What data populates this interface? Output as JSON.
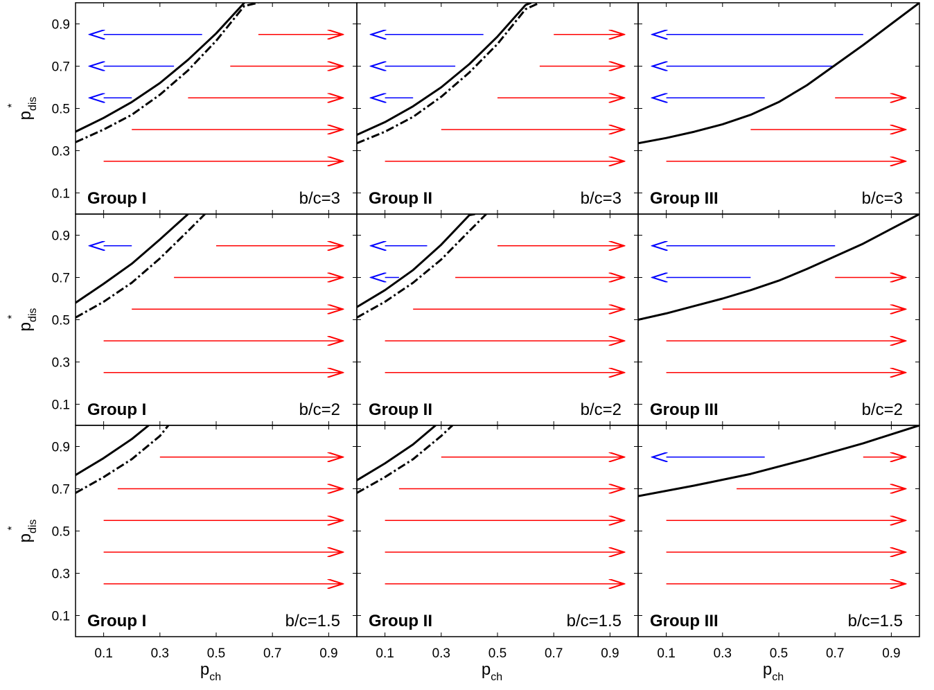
{
  "chart_data": {
    "type": "line",
    "layout": "3x3 grid of panels",
    "xlim": [
      0,
      1
    ],
    "ylim": [
      0,
      1
    ],
    "xticks": [
      0.1,
      0.3,
      0.5,
      0.7,
      0.9
    ],
    "yticks": [
      0.1,
      0.3,
      0.5,
      0.7,
      0.9
    ],
    "xtick_labels": [
      "0.1",
      "0.3",
      "0.5",
      "0.7",
      "0.9"
    ],
    "ytick_labels": [
      "0.1",
      "0.3",
      "0.5",
      "0.7",
      "0.9"
    ],
    "xlabel": {
      "main": "p",
      "sub": "ch"
    },
    "ylabel": {
      "main": "p",
      "sub": "dis",
      "sup": "*"
    },
    "grid": false,
    "colors": {
      "red_arrow": "#ff0000",
      "blue_arrow": "#0000ff",
      "curve": "#000000"
    },
    "arrow_rows": [
      0.25,
      0.4,
      0.55,
      0.7,
      0.85
    ],
    "panels": [
      {
        "group": "Group I",
        "bc": "b/c=3",
        "solid": [
          [
            0,
            0.39
          ],
          [
            0.1,
            0.455
          ],
          [
            0.2,
            0.53
          ],
          [
            0.3,
            0.62
          ],
          [
            0.4,
            0.73
          ],
          [
            0.5,
            0.855
          ],
          [
            0.6,
            1.0
          ]
        ],
        "dashdot": [
          [
            0,
            0.34
          ],
          [
            0.1,
            0.4
          ],
          [
            0.2,
            0.47
          ],
          [
            0.3,
            0.565
          ],
          [
            0.4,
            0.68
          ],
          [
            0.5,
            0.82
          ],
          [
            0.6,
            0.985
          ],
          [
            0.65,
            1.0
          ]
        ],
        "red_arrows": [
          [
            0.1,
            0.95,
            0.25
          ],
          [
            0.2,
            0.95,
            0.4
          ],
          [
            0.4,
            0.95,
            0.55
          ],
          [
            0.55,
            0.95,
            0.7
          ],
          [
            0.65,
            0.95,
            0.85
          ]
        ],
        "blue_arrows": [
          [
            0.2,
            0.1,
            0.55
          ],
          [
            0.35,
            0.1,
            0.7
          ],
          [
            0.45,
            0.1,
            0.85
          ]
        ]
      },
      {
        "group": "Group II",
        "bc": "b/c=3",
        "solid": [
          [
            0,
            0.375
          ],
          [
            0.1,
            0.435
          ],
          [
            0.2,
            0.51
          ],
          [
            0.3,
            0.6
          ],
          [
            0.4,
            0.71
          ],
          [
            0.5,
            0.84
          ],
          [
            0.6,
            0.99
          ],
          [
            0.62,
            1.0
          ]
        ],
        "dashdot": [
          [
            0,
            0.335
          ],
          [
            0.1,
            0.39
          ],
          [
            0.2,
            0.46
          ],
          [
            0.3,
            0.555
          ],
          [
            0.4,
            0.67
          ],
          [
            0.5,
            0.805
          ],
          [
            0.6,
            0.97
          ],
          [
            0.65,
            1.0
          ]
        ],
        "red_arrows": [
          [
            0.1,
            0.95,
            0.25
          ],
          [
            0.3,
            0.95,
            0.4
          ],
          [
            0.5,
            0.95,
            0.55
          ],
          [
            0.65,
            0.95,
            0.7
          ],
          [
            0.7,
            0.95,
            0.85
          ]
        ],
        "blue_arrows": [
          [
            0.2,
            0.1,
            0.55
          ],
          [
            0.35,
            0.1,
            0.7
          ],
          [
            0.45,
            0.1,
            0.85
          ]
        ]
      },
      {
        "group": "Group III",
        "bc": "b/c=3",
        "solid": [
          [
            0,
            0.335
          ],
          [
            0.1,
            0.36
          ],
          [
            0.2,
            0.39
          ],
          [
            0.3,
            0.425
          ],
          [
            0.4,
            0.47
          ],
          [
            0.5,
            0.53
          ],
          [
            0.6,
            0.61
          ],
          [
            0.7,
            0.705
          ],
          [
            0.8,
            0.8
          ],
          [
            0.9,
            0.9
          ],
          [
            1.0,
            1.0
          ]
        ],
        "dashdot": [],
        "red_arrows": [
          [
            0.1,
            0.95,
            0.25
          ],
          [
            0.4,
            0.95,
            0.4
          ],
          [
            0.7,
            0.95,
            0.55
          ]
        ],
        "blue_arrows": [
          [
            0.45,
            0.1,
            0.55
          ],
          [
            0.7,
            0.1,
            0.7
          ],
          [
            0.8,
            0.1,
            0.85
          ]
        ]
      },
      {
        "group": "Group I",
        "bc": "b/c=2",
        "solid": [
          [
            0,
            0.58
          ],
          [
            0.1,
            0.67
          ],
          [
            0.2,
            0.765
          ],
          [
            0.3,
            0.88
          ],
          [
            0.4,
            1.0
          ]
        ],
        "dashdot": [
          [
            0,
            0.51
          ],
          [
            0.1,
            0.585
          ],
          [
            0.2,
            0.675
          ],
          [
            0.3,
            0.79
          ],
          [
            0.4,
            0.92
          ],
          [
            0.46,
            1.0
          ]
        ],
        "red_arrows": [
          [
            0.1,
            0.95,
            0.25
          ],
          [
            0.1,
            0.95,
            0.4
          ],
          [
            0.2,
            0.95,
            0.55
          ],
          [
            0.35,
            0.95,
            0.7
          ],
          [
            0.5,
            0.95,
            0.85
          ]
        ],
        "blue_arrows": [
          [
            0.2,
            0.1,
            0.85
          ]
        ]
      },
      {
        "group": "Group II",
        "bc": "b/c=2",
        "solid": [
          [
            0,
            0.56
          ],
          [
            0.1,
            0.64
          ],
          [
            0.2,
            0.735
          ],
          [
            0.3,
            0.855
          ],
          [
            0.4,
            0.995
          ],
          [
            0.42,
            1.0
          ]
        ],
        "dashdot": [
          [
            0,
            0.51
          ],
          [
            0.1,
            0.585
          ],
          [
            0.2,
            0.675
          ],
          [
            0.3,
            0.785
          ],
          [
            0.4,
            0.92
          ],
          [
            0.46,
            1.0
          ]
        ],
        "red_arrows": [
          [
            0.1,
            0.95,
            0.25
          ],
          [
            0.1,
            0.95,
            0.4
          ],
          [
            0.2,
            0.95,
            0.55
          ],
          [
            0.35,
            0.95,
            0.7
          ],
          [
            0.5,
            0.95,
            0.85
          ]
        ],
        "blue_arrows": [
          [
            0.15,
            0.1,
            0.7
          ],
          [
            0.25,
            0.1,
            0.85
          ]
        ]
      },
      {
        "group": "Group III",
        "bc": "b/c=2",
        "solid": [
          [
            0,
            0.5
          ],
          [
            0.1,
            0.53
          ],
          [
            0.2,
            0.565
          ],
          [
            0.3,
            0.6
          ],
          [
            0.4,
            0.64
          ],
          [
            0.5,
            0.685
          ],
          [
            0.6,
            0.74
          ],
          [
            0.7,
            0.8
          ],
          [
            0.8,
            0.86
          ],
          [
            0.9,
            0.93
          ],
          [
            1.0,
            1.0
          ]
        ],
        "dashdot": [],
        "red_arrows": [
          [
            0.1,
            0.95,
            0.25
          ],
          [
            0.1,
            0.95,
            0.4
          ],
          [
            0.3,
            0.95,
            0.55
          ],
          [
            0.7,
            0.95,
            0.7
          ]
        ],
        "blue_arrows": [
          [
            0.4,
            0.1,
            0.7
          ],
          [
            0.7,
            0.1,
            0.85
          ]
        ]
      },
      {
        "group": "Group I",
        "bc": "b/c=1.5",
        "solid": [
          [
            0,
            0.765
          ],
          [
            0.1,
            0.845
          ],
          [
            0.2,
            0.935
          ],
          [
            0.26,
            1.0
          ]
        ],
        "dashdot": [
          [
            0,
            0.68
          ],
          [
            0.1,
            0.755
          ],
          [
            0.2,
            0.84
          ],
          [
            0.3,
            0.95
          ],
          [
            0.33,
            1.0
          ]
        ],
        "red_arrows": [
          [
            0.1,
            0.95,
            0.25
          ],
          [
            0.1,
            0.95,
            0.4
          ],
          [
            0.1,
            0.95,
            0.55
          ],
          [
            0.15,
            0.95,
            0.7
          ],
          [
            0.3,
            0.95,
            0.85
          ]
        ],
        "blue_arrows": []
      },
      {
        "group": "Group II",
        "bc": "b/c=1.5",
        "solid": [
          [
            0,
            0.74
          ],
          [
            0.1,
            0.82
          ],
          [
            0.2,
            0.91
          ],
          [
            0.28,
            1.0
          ]
        ],
        "dashdot": [
          [
            0,
            0.68
          ],
          [
            0.1,
            0.755
          ],
          [
            0.2,
            0.84
          ],
          [
            0.3,
            0.95
          ],
          [
            0.34,
            1.0
          ]
        ],
        "red_arrows": [
          [
            0.1,
            0.95,
            0.25
          ],
          [
            0.1,
            0.95,
            0.4
          ],
          [
            0.1,
            0.95,
            0.55
          ],
          [
            0.15,
            0.95,
            0.7
          ],
          [
            0.3,
            0.95,
            0.85
          ]
        ],
        "blue_arrows": []
      },
      {
        "group": "Group III",
        "bc": "b/c=1.5",
        "solid": [
          [
            0,
            0.665
          ],
          [
            0.2,
            0.715
          ],
          [
            0.4,
            0.77
          ],
          [
            0.6,
            0.84
          ],
          [
            0.8,
            0.915
          ],
          [
            1.0,
            1.0
          ]
        ],
        "dashdot": [],
        "red_arrows": [
          [
            0.1,
            0.95,
            0.25
          ],
          [
            0.1,
            0.95,
            0.4
          ],
          [
            0.1,
            0.95,
            0.55
          ],
          [
            0.35,
            0.95,
            0.7
          ],
          [
            0.8,
            0.95,
            0.85
          ]
        ],
        "blue_arrows": [
          [
            0.45,
            0.1,
            0.85
          ]
        ]
      }
    ]
  }
}
